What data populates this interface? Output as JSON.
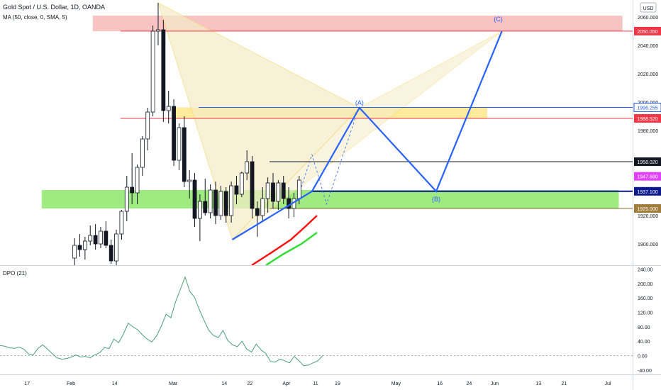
{
  "header": {
    "title": "Gold Spot / U.S. Dollar, 1D, OANDA",
    "indicator_ma": "MA (50, close, 0, SMA, 5)",
    "currency_badge": "USD"
  },
  "colors": {
    "candle_up_fill": "#ffffff",
    "candle_down_fill": "#131722",
    "candle_border": "#131722",
    "blue": "#2962ff",
    "red_zone": "#f7b8b8",
    "yellow_zone": "#fde68a",
    "green_zone": "#8ee66b",
    "dpo_line": "#4c9f7a",
    "ma_red": "#ff1111",
    "ma_green": "#33dd33",
    "harmonic_fill": "#f5ecc8"
  },
  "chart_data": [
    {
      "type": "candlestick",
      "title": "Gold Spot / U.S. Dollar, 1D, OANDA",
      "y_axis": {
        "ticks": [
          "2060.000",
          "2040.000",
          "2020.000",
          "2000.000",
          "1980.000",
          "1920.000",
          "1900.000"
        ],
        "tick_values": [
          2060,
          2040,
          2020,
          2000,
          1980,
          1920,
          1900
        ],
        "range": [
          1885,
          2072
        ]
      },
      "x_axis": {
        "ticks": [
          "17",
          "Feb",
          "14",
          "Mar",
          "14",
          "22",
          "Apr",
          "11",
          "19",
          "May",
          "16",
          "24",
          "Jun",
          "13",
          "21",
          "Jul"
        ],
        "tick_day_index": [
          -12,
          0,
          12,
          28,
          42,
          49,
          59,
          67,
          73,
          89,
          101,
          109,
          116,
          128,
          135,
          147
        ]
      },
      "price_labels": [
        {
          "text": "2050.050",
          "value": 2050.05,
          "kind": "red"
        },
        {
          "text": "1996.255",
          "value": 1996.255,
          "kind": "blue"
        },
        {
          "text": "1988.520",
          "value": 1988.52,
          "kind": "red"
        },
        {
          "text": "1958.020",
          "value": 1958.02,
          "kind": "dark"
        },
        {
          "text": "1947.680",
          "value": 1947.68,
          "kind": "magenta"
        },
        {
          "text": "1937.100",
          "value": 1937.1,
          "kind": "navy"
        },
        {
          "text": "1925.000",
          "value": 1925.0,
          "kind": "brown"
        }
      ],
      "zones": [
        {
          "name": "supply-zone",
          "from_day": 6,
          "to_day": 151,
          "low": 2050,
          "high": 2061
        },
        {
          "name": "resistance-zone",
          "from_day": 28,
          "to_day": 114,
          "low": 1988.5,
          "high": 1996.3
        },
        {
          "name": "support-zone",
          "from_day": -8,
          "to_day": 150,
          "low": 1925,
          "high": 1938
        }
      ],
      "pattern_labels": [
        {
          "text": "(A)",
          "day": 79,
          "value": 1998
        },
        {
          "text": "(B)",
          "day": 100,
          "value": 1930
        },
        {
          "text": "(C)",
          "day": 117,
          "value": 2057
        }
      ],
      "projection_path": [
        {
          "day": 54,
          "value": 1903
        },
        {
          "day": 66,
          "value": 1937.1
        },
        {
          "day": 79,
          "value": 1996
        },
        {
          "day": 100,
          "value": 1937.1
        },
        {
          "day": 118,
          "value": 2050.05
        }
      ],
      "candles": [
        {
          "o": 1890,
          "h": 1904,
          "l": 1884,
          "c": 1899
        },
        {
          "o": 1899,
          "h": 1907,
          "l": 1891,
          "c": 1896
        },
        {
          "o": 1896,
          "h": 1905,
          "l": 1889,
          "c": 1902
        },
        {
          "o": 1902,
          "h": 1913,
          "l": 1899,
          "c": 1906
        },
        {
          "o": 1906,
          "h": 1914,
          "l": 1896,
          "c": 1900
        },
        {
          "o": 1900,
          "h": 1912,
          "l": 1897,
          "c": 1909
        },
        {
          "o": 1909,
          "h": 1916,
          "l": 1897,
          "c": 1899
        },
        {
          "o": 1899,
          "h": 1903,
          "l": 1886,
          "c": 1888
        },
        {
          "o": 1888,
          "h": 1910,
          "l": 1884,
          "c": 1907
        },
        {
          "o": 1907,
          "h": 1924,
          "l": 1903,
          "c": 1923
        },
        {
          "o": 1923,
          "h": 1948,
          "l": 1916,
          "c": 1940
        },
        {
          "o": 1940,
          "h": 1964,
          "l": 1928,
          "c": 1936
        },
        {
          "o": 1936,
          "h": 1956,
          "l": 1928,
          "c": 1954
        },
        {
          "o": 1954,
          "h": 1976,
          "l": 1948,
          "c": 1974
        },
        {
          "o": 1974,
          "h": 1996,
          "l": 1966,
          "c": 1993
        },
        {
          "o": 1993,
          "h": 2054,
          "l": 1990,
          "c": 2050
        },
        {
          "o": 2050,
          "h": 2070,
          "l": 2040,
          "c": 2051
        },
        {
          "o": 2051,
          "h": 2058,
          "l": 1986,
          "c": 1994
        },
        {
          "o": 1994,
          "h": 2008,
          "l": 1985,
          "c": 1997
        },
        {
          "o": 1997,
          "h": 2002,
          "l": 1955,
          "c": 1959
        },
        {
          "o": 1959,
          "h": 1985,
          "l": 1952,
          "c": 1982
        },
        {
          "o": 1982,
          "h": 1990,
          "l": 1940,
          "c": 1944
        },
        {
          "o": 1944,
          "h": 1952,
          "l": 1932,
          "c": 1945
        },
        {
          "o": 1945,
          "h": 1950,
          "l": 1912,
          "c": 1918
        },
        {
          "o": 1918,
          "h": 1935,
          "l": 1902,
          "c": 1930
        },
        {
          "o": 1930,
          "h": 1946,
          "l": 1920,
          "c": 1922
        },
        {
          "o": 1922,
          "h": 1942,
          "l": 1918,
          "c": 1938
        },
        {
          "o": 1938,
          "h": 1944,
          "l": 1914,
          "c": 1920
        },
        {
          "o": 1920,
          "h": 1941,
          "l": 1917,
          "c": 1937
        },
        {
          "o": 1937,
          "h": 1940,
          "l": 1915,
          "c": 1920
        },
        {
          "o": 1920,
          "h": 1944,
          "l": 1915,
          "c": 1941
        },
        {
          "o": 1941,
          "h": 1948,
          "l": 1928,
          "c": 1935
        },
        {
          "o": 1935,
          "h": 1951,
          "l": 1933,
          "c": 1950
        },
        {
          "o": 1950,
          "h": 1966,
          "l": 1945,
          "c": 1958
        },
        {
          "o": 1958,
          "h": 1962,
          "l": 1918,
          "c": 1925
        },
        {
          "o": 1925,
          "h": 1930,
          "l": 1905,
          "c": 1920
        },
        {
          "o": 1920,
          "h": 1940,
          "l": 1916,
          "c": 1932
        },
        {
          "o": 1932,
          "h": 1947,
          "l": 1922,
          "c": 1943
        },
        {
          "o": 1943,
          "h": 1950,
          "l": 1925,
          "c": 1930
        },
        {
          "o": 1930,
          "h": 1945,
          "l": 1924,
          "c": 1943
        },
        {
          "o": 1943,
          "h": 1948,
          "l": 1928,
          "c": 1932
        },
        {
          "o": 1932,
          "h": 1940,
          "l": 1918,
          "c": 1925
        },
        {
          "o": 1925,
          "h": 1936,
          "l": 1919,
          "c": 1932
        },
        {
          "o": 1932,
          "h": 1948,
          "l": 1928,
          "c": 1945
        }
      ],
      "candle_start_day": 1,
      "candle_step_days": 1.43
    },
    {
      "type": "line",
      "title": "DPO (21)",
      "y_axis": {
        "ticks": [
          "240.00",
          "200.00",
          "160.00",
          "120.00",
          "80.00",
          "40.00",
          "0.00",
          "-40.00"
        ],
        "tick_values": [
          240,
          200,
          160,
          120,
          80,
          40,
          0,
          -40
        ],
        "range": [
          -52,
          245
        ]
      },
      "series": [
        {
          "values": [
            28,
            26,
            22,
            20,
            24,
            18,
            5,
            2,
            20,
            30,
            18,
            6,
            -6,
            -10,
            -8,
            -4,
            2,
            -4,
            -2,
            -6,
            2,
            8,
            22,
            20,
            46,
            36,
            60,
            90,
            80,
            72,
            58,
            46,
            38,
            55,
            82,
            115,
            105,
            150,
            184,
            218,
            178,
            162,
            128,
            98,
            70,
            56,
            50,
            70,
            42,
            30,
            25,
            40,
            18,
            10,
            32,
            16,
            6,
            -16,
            -18,
            -10,
            -14,
            -20,
            -2,
            -14,
            -28,
            -26,
            -20,
            -14,
            0
          ]
        }
      ]
    }
  ]
}
